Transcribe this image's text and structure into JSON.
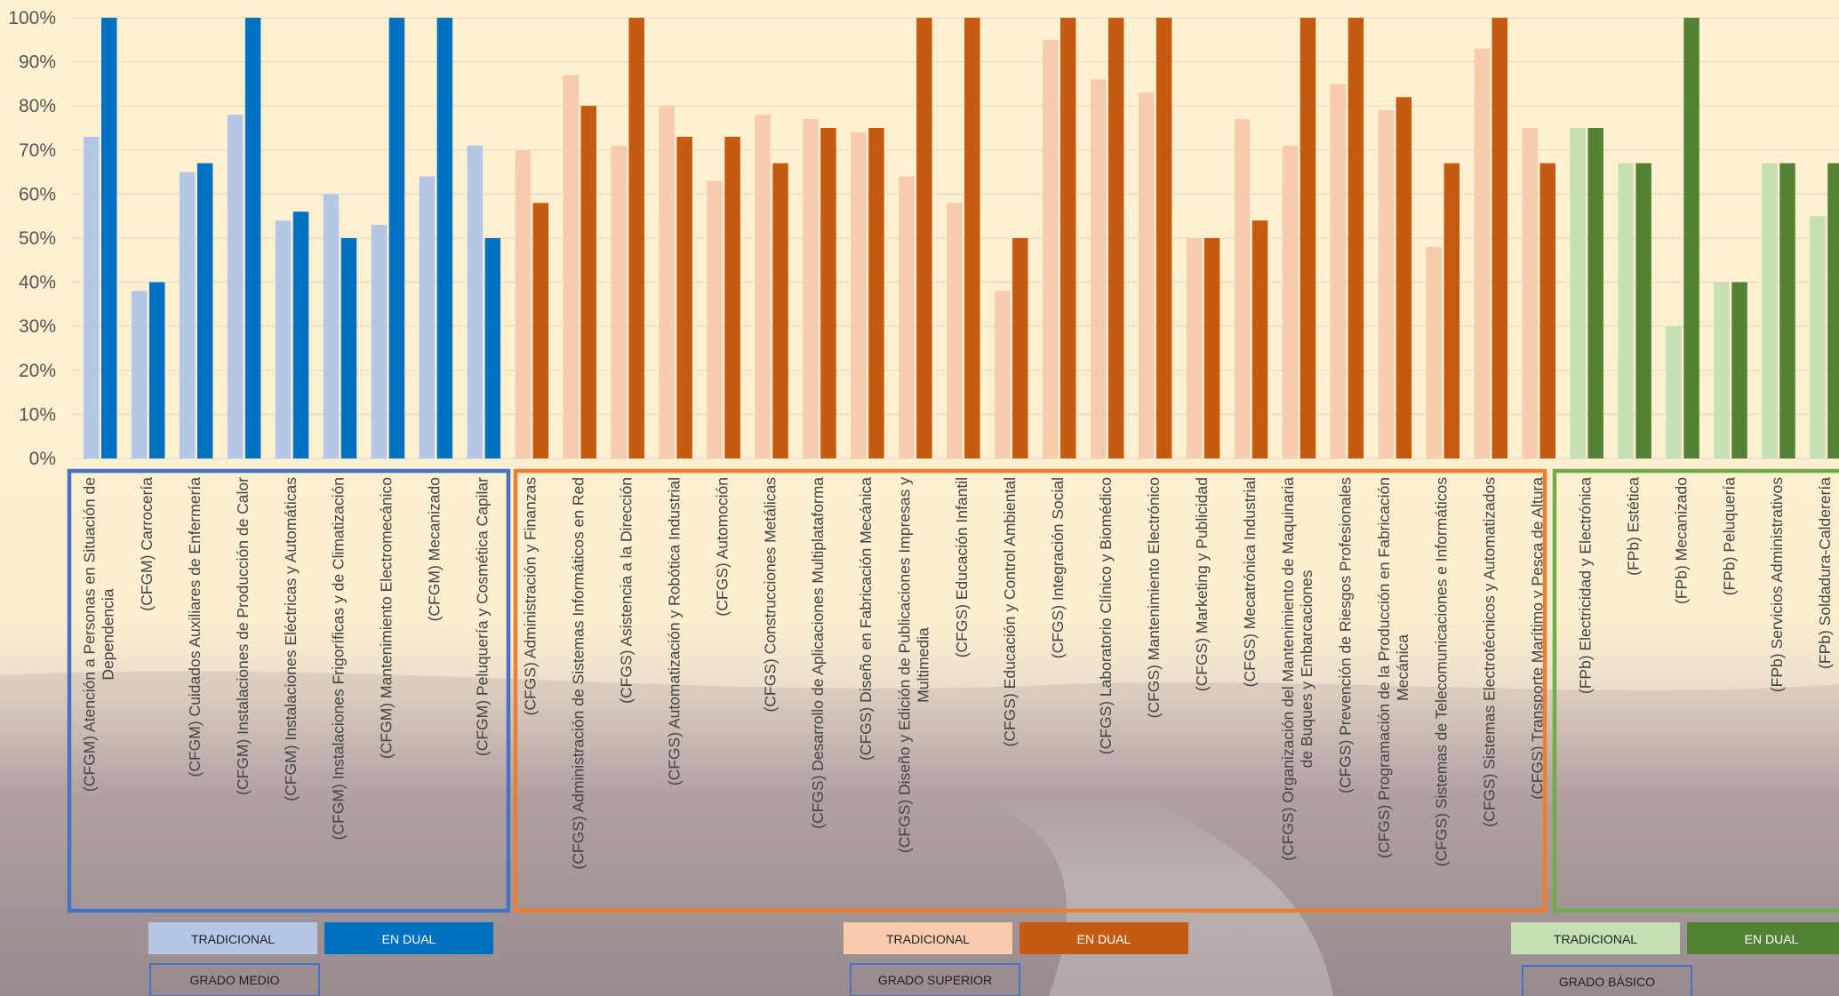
{
  "chart_data": {
    "type": "bar",
    "ylim": [
      0,
      100
    ],
    "y_ticks": [
      "0%",
      "10%",
      "20%",
      "30%",
      "40%",
      "50%",
      "60%",
      "70%",
      "80%",
      "90%",
      "100%"
    ],
    "grid": true,
    "groups": [
      {
        "name": "GRADO MEDIO",
        "legend": [
          "TRADICIONAL",
          "EN DUAL"
        ],
        "colors": {
          "tradicional": "#b4c7e7",
          "dual": "#0070c0",
          "frame": "#4472c4"
        },
        "categories": [
          [
            "(CFGM) Atención a Personas en Situación de",
            "Dependencia"
          ],
          [
            "(CFGM) Carrocería"
          ],
          [
            "(CFGM) Cuidados Auxiliares de Enfermería"
          ],
          [
            "(CFGM) Instalaciones de Producción de Calor"
          ],
          [
            "(CFGM) Instalaciones Eléctricas y Automáticas"
          ],
          [
            "(CFGM) Instalaciones Frigoríficas y de Climatización"
          ],
          [
            "(CFGM) Mantenimiento Electromecánico"
          ],
          [
            "(CFGM) Mecanizado"
          ],
          [
            "(CFGM) Peluquería y Cosmética Capilar"
          ]
        ],
        "series": [
          {
            "name": "TRADICIONAL",
            "values": [
              73,
              38,
              65,
              78,
              54,
              60,
              53,
              64,
              71
            ]
          },
          {
            "name": "EN DUAL",
            "values": [
              100,
              40,
              67,
              100,
              56,
              50,
              100,
              100,
              50
            ]
          }
        ]
      },
      {
        "name": "GRADO SUPERIOR",
        "legend": [
          "TRADICIONAL",
          "EN DUAL"
        ],
        "colors": {
          "tradicional": "#f8cbad",
          "dual": "#c55a11",
          "frame": "#ed7d31"
        },
        "categories": [
          [
            "(CFGS) Administración y Finanzas"
          ],
          [
            "(CFGS) Administración de Sistemas Informáticos en Red"
          ],
          [
            "(CFGS) Asistencia a la Dirección"
          ],
          [
            "(CFGS) Automatización y Robótica Industrial"
          ],
          [
            "(CFGS) Automoción"
          ],
          [
            "(CFGS) Construcciones Metálicas"
          ],
          [
            "(CFGS) Desarrollo de Aplicaciones Multiplataforma"
          ],
          [
            "(CFGS) Diseño en Fabricación Mecánica"
          ],
          [
            "(CFGS) Diseño y Edición de Publicaciones Impresas y",
            "Multimedia"
          ],
          [
            "(CFGS) Educación Infantil"
          ],
          [
            "(CFGS) Educación y Control Ambiental"
          ],
          [
            "(CFGS) Integración Social"
          ],
          [
            "(CFGS) Laboratorio Clínico y Biomédico"
          ],
          [
            "(CFGS) Mantenimiento Electrónico"
          ],
          [
            "(CFGS) Marketing y Publicidad"
          ],
          [
            "(CFGS) Mecatrónica Industrial"
          ],
          [
            "(CFGS) Organización del Mantenimiento de Maquinaria",
            "de Buques y Embarcaciones"
          ],
          [
            "(CFGS) Prevención de Riesgos Profesionales"
          ],
          [
            "(CFGS) Programación de la Producción en Fabricación",
            "Mecánica"
          ],
          [
            "(CFGS) Sistemas de Telecomunicaciones e Informáticos"
          ],
          [
            "(CFGS) Sistemas Electrotécnicos y Automatizados"
          ],
          [
            "(CFGS) Transporte Marítimo y Pesca de Altura"
          ]
        ],
        "series": [
          {
            "name": "TRADICIONAL",
            "values": [
              70,
              87,
              71,
              80,
              63,
              78,
              77,
              74,
              64,
              58,
              38,
              95,
              86,
              83,
              50,
              77,
              71,
              85,
              79,
              48,
              93,
              75
            ]
          },
          {
            "name": "EN DUAL",
            "values": [
              58,
              80,
              100,
              73,
              73,
              67,
              75,
              75,
              100,
              100,
              50,
              100,
              100,
              100,
              50,
              54,
              100,
              100,
              82,
              67,
              100,
              67
            ]
          }
        ]
      },
      {
        "name": "GRADO BÁSICO",
        "legend": [
          "TRADICIONAL",
          "EN DUAL"
        ],
        "colors": {
          "tradicional": "#c5e0b4",
          "dual": "#548235",
          "frame": "#70ad47"
        },
        "categories": [
          [
            "(FPb) Electricidad y Electrónica"
          ],
          [
            "(FPb) Estética"
          ],
          [
            "(FPb) Mecanizado"
          ],
          [
            "(FPb) Peluquería"
          ],
          [
            "(FPb) Servicios Administrativos"
          ],
          [
            "(FPb) Soldadura-Calderería"
          ]
        ],
        "series": [
          {
            "name": "TRADICIONAL",
            "values": [
              75,
              67,
              30,
              40,
              67,
              55
            ]
          },
          {
            "name": "EN DUAL",
            "values": [
              75,
              67,
              100,
              40,
              67,
              67
            ]
          }
        ]
      }
    ]
  }
}
